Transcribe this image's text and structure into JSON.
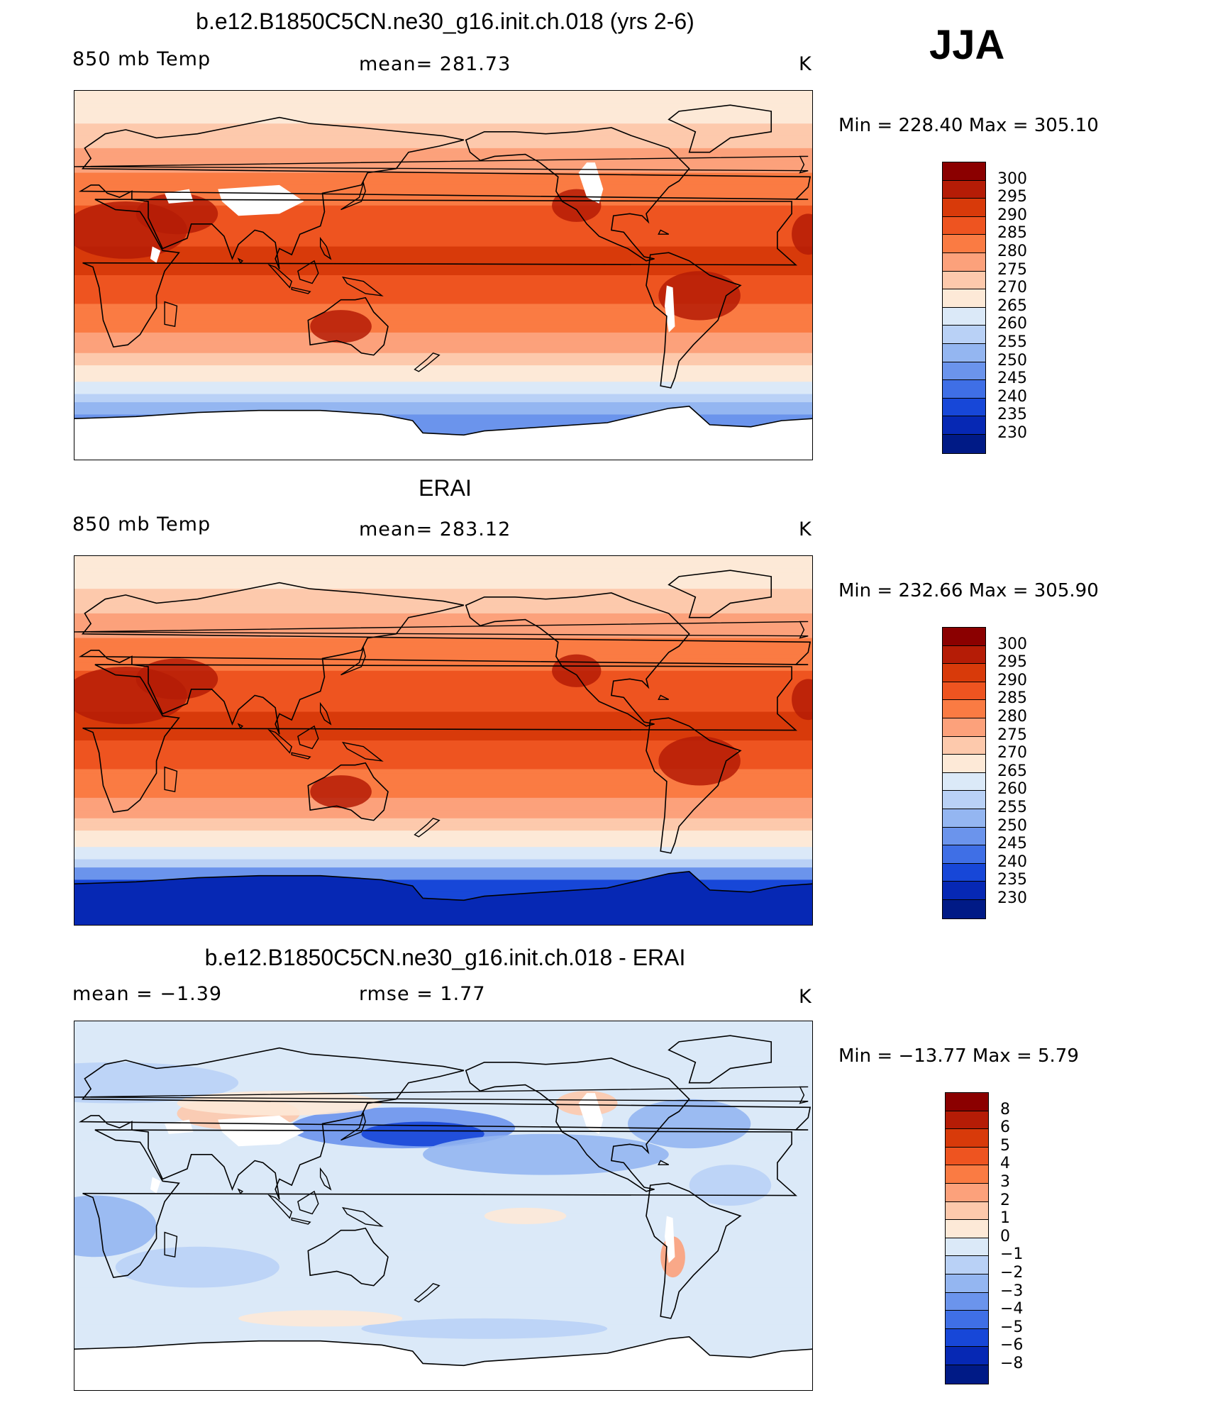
{
  "season": "JJA",
  "panels": [
    {
      "title": "b.e12.B1850C5CN.ne30_g16.init.ch.018 (yrs 2-6)",
      "left_label": "850 mb Temp",
      "center_label": "mean=  281.73",
      "units": "K",
      "minmax": "Min  =  228.40  Max  =  305.10",
      "type": "model"
    },
    {
      "title": "ERAI",
      "left_label": "850 mb Temp",
      "center_label": "mean=  283.12",
      "units": "K",
      "minmax": "Min  =  232.66  Max  =  305.90",
      "type": "obs"
    },
    {
      "title": "b.e12.B1850C5CN.ne30_g16.init.ch.018 - ERAI",
      "left_label": "mean  =    −1.39",
      "center_label": "rmse  =     1.77",
      "units": "K",
      "minmax": "Min  =  −13.77  Max  =     5.79",
      "type": "diff"
    }
  ],
  "temp_colorbar": {
    "labels": [
      "300",
      "295",
      "290",
      "285",
      "280",
      "275",
      "270",
      "265",
      "260",
      "255",
      "250",
      "245",
      "240",
      "235",
      "230"
    ],
    "colors": [
      "#8b0000",
      "#b51c06",
      "#d83a0a",
      "#ee5420",
      "#fa7b43",
      "#fca17b",
      "#fdc9ac",
      "#fde9d7",
      "#dbe9f8",
      "#b9d1f6",
      "#94b6f1",
      "#6b94ec",
      "#3f6fe6",
      "#1747d8",
      "#0628b4",
      "#001a86"
    ]
  },
  "diff_colorbar": {
    "labels": [
      "8",
      "6",
      "5",
      "4",
      "3",
      "2",
      "1",
      "0",
      "−1",
      "−2",
      "−3",
      "−4",
      "−5",
      "−6",
      "−8"
    ],
    "colors": [
      "#8b0000",
      "#b51c06",
      "#d83a0a",
      "#ee5420",
      "#fa7b43",
      "#fca17b",
      "#fdc9ac",
      "#fde9d7",
      "#dbe9f8",
      "#b9d1f6",
      "#94b6f1",
      "#6b94ec",
      "#3f6fe6",
      "#1747d8",
      "#0628b4",
      "#001a86"
    ]
  }
}
